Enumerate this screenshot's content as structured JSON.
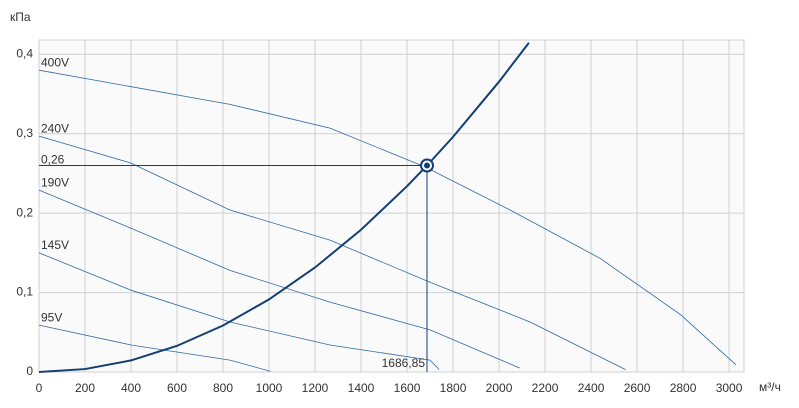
{
  "chart_data": {
    "type": "line",
    "y_label": "кПа",
    "x_label": "м³/ч",
    "xlim": [
      0,
      3065
    ],
    "ylim": [
      0,
      0.418
    ],
    "xticks": [
      0,
      200,
      400,
      600,
      800,
      1000,
      1200,
      1400,
      1600,
      1800,
      2000,
      2200,
      2400,
      2600,
      2800,
      3000
    ],
    "yticks": [
      0,
      {
        "value": 0.1,
        "label": "0,1"
      },
      {
        "value": 0.2,
        "label": "0,2"
      },
      {
        "value": 0.3,
        "label": "0,3"
      },
      {
        "value": 0.4,
        "label": "0,4"
      }
    ],
    "grid": true,
    "series": [
      {
        "name": "400V",
        "color": "#2f6aa6",
        "x": [
          0,
          830,
          1265,
          1680,
          2048,
          2440,
          2790,
          3030
        ],
        "values": [
          0.38,
          0.337,
          0.307,
          0.258,
          0.204,
          0.143,
          0.072,
          0.009
        ]
      },
      {
        "name": "240V",
        "color": "#2f6aa6",
        "x": [
          0,
          400,
          830,
          1265,
          1700,
          2135,
          2550
        ],
        "values": [
          0.297,
          0.263,
          0.204,
          0.166,
          0.113,
          0.063,
          0.003
        ]
      },
      {
        "name": "190V",
        "color": "#2f6aa6",
        "x": [
          0,
          400,
          830,
          1265,
          1700,
          2090
        ],
        "values": [
          0.229,
          0.181,
          0.128,
          0.088,
          0.053,
          0.005
        ]
      },
      {
        "name": "145V",
        "color": "#2f6aa6",
        "x": [
          0,
          400,
          830,
          1265,
          1700,
          1740
        ],
        "values": [
          0.15,
          0.103,
          0.063,
          0.034,
          0.015,
          0.003
        ]
      },
      {
        "name": "95V",
        "color": "#2f6aa6",
        "x": [
          0,
          400,
          830,
          1005
        ],
        "values": [
          0.059,
          0.034,
          0.015,
          0.001
        ]
      }
    ],
    "system_curve": {
      "color": "#123f73",
      "x": [
        0,
        200,
        400,
        600,
        800,
        1000,
        1200,
        1400,
        1600,
        1686.85,
        1800,
        2000,
        2130
      ],
      "values": [
        0,
        0.0037,
        0.0146,
        0.0329,
        0.0585,
        0.0914,
        0.1316,
        0.1791,
        0.2339,
        0.26,
        0.296,
        0.3655,
        0.4145
      ]
    },
    "operating_point": {
      "x": {
        "value": 1686.85,
        "label": "1686,85"
      },
      "y": {
        "value": 0.26,
        "label": "0,26"
      },
      "color": "#123f73"
    }
  }
}
